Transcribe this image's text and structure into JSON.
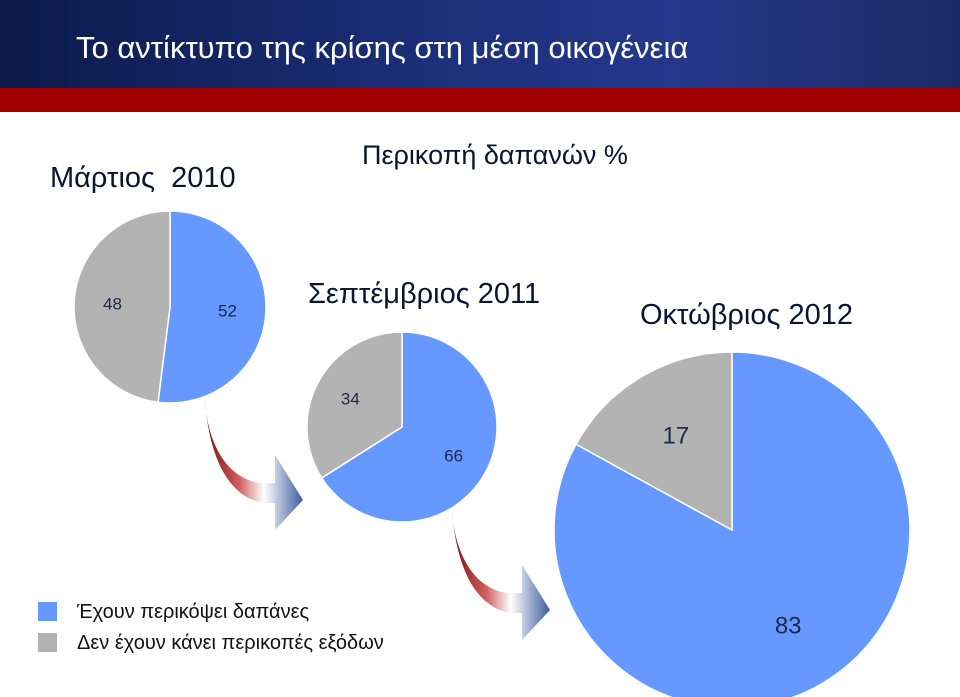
{
  "title": "Το αντίκτυπο της κρίσης στη μέση οικογένεια",
  "colors": {
    "cut": "#6699ff",
    "no_cut": "#b3b3b3"
  },
  "chart_data": {
    "type": "pie",
    "title": "Περικοπή δαπανών %",
    "series": [
      {
        "name": "Έχουν περικόψει δαπάνες",
        "color": "#6699ff"
      },
      {
        "name": "Δεν έχουν κάνει περικοπές εξόδων",
        "color": "#b3b3b3"
      }
    ],
    "pies": [
      {
        "label": "Μάρτιος  2010",
        "values": [
          52,
          48
        ]
      },
      {
        "label": "Σεπτέμβριος 2011",
        "values": [
          66,
          34
        ]
      },
      {
        "label": "Οκτώβριος 2012",
        "values": [
          83,
          17
        ]
      }
    ],
    "legend_position": "bottom-left"
  }
}
